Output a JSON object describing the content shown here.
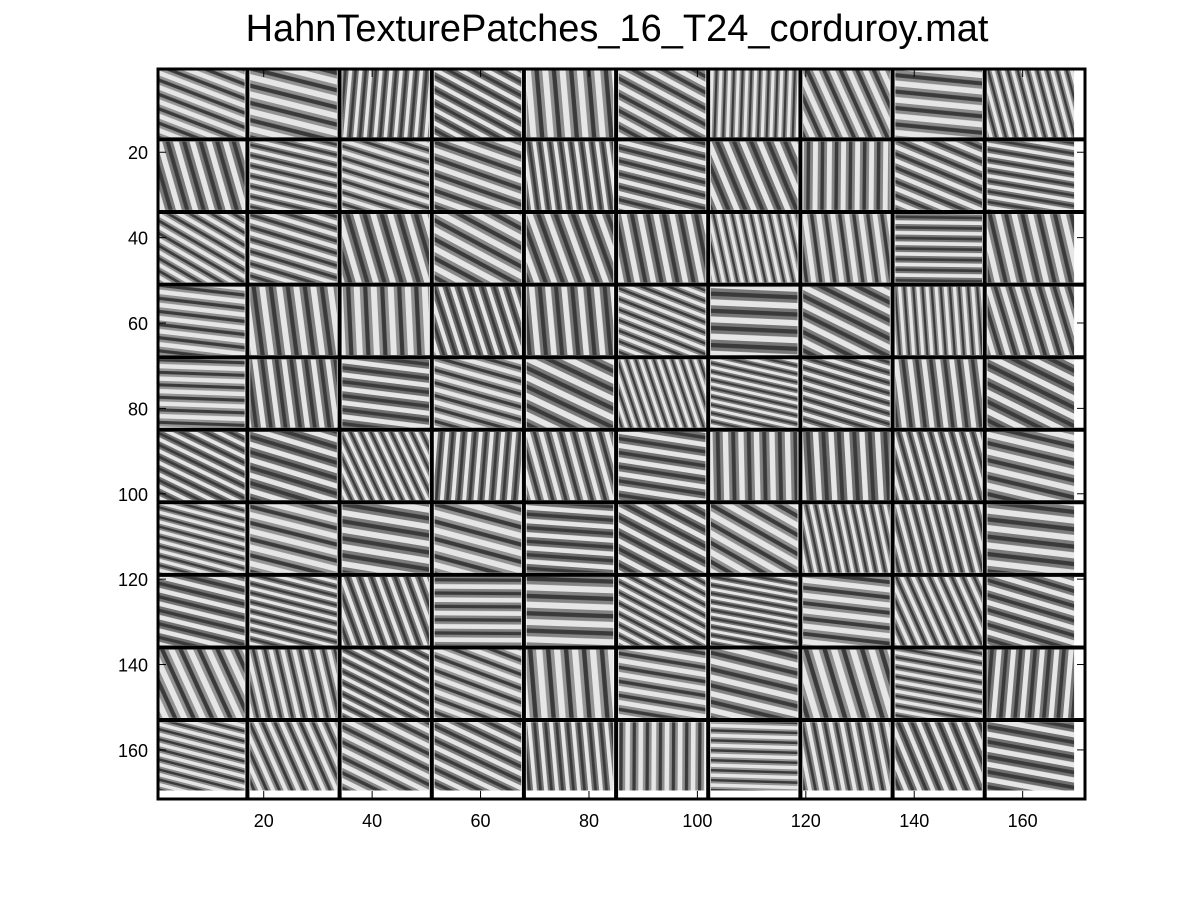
{
  "title": "HahnTexturePatches_16_T24_corduroy.mat",
  "axes": {
    "x_range": [
      0.5,
      171.5
    ],
    "y_range": [
      0.5,
      171.5
    ],
    "y_reversed": true,
    "x_ticks": [
      "20",
      "40",
      "60",
      "80",
      "100",
      "120",
      "140",
      "160"
    ],
    "y_ticks": [
      "20",
      "40",
      "60",
      "80",
      "100",
      "120",
      "140",
      "160"
    ],
    "x_tick_values": [
      20,
      40,
      60,
      80,
      100,
      120,
      140,
      160
    ],
    "y_tick_values": [
      20,
      40,
      60,
      80,
      100,
      120,
      140,
      160
    ]
  },
  "mosaic": {
    "rows": 10,
    "cols": 10,
    "patch_size": 16,
    "colormap": "gray",
    "separator_color": "#000000"
  }
}
